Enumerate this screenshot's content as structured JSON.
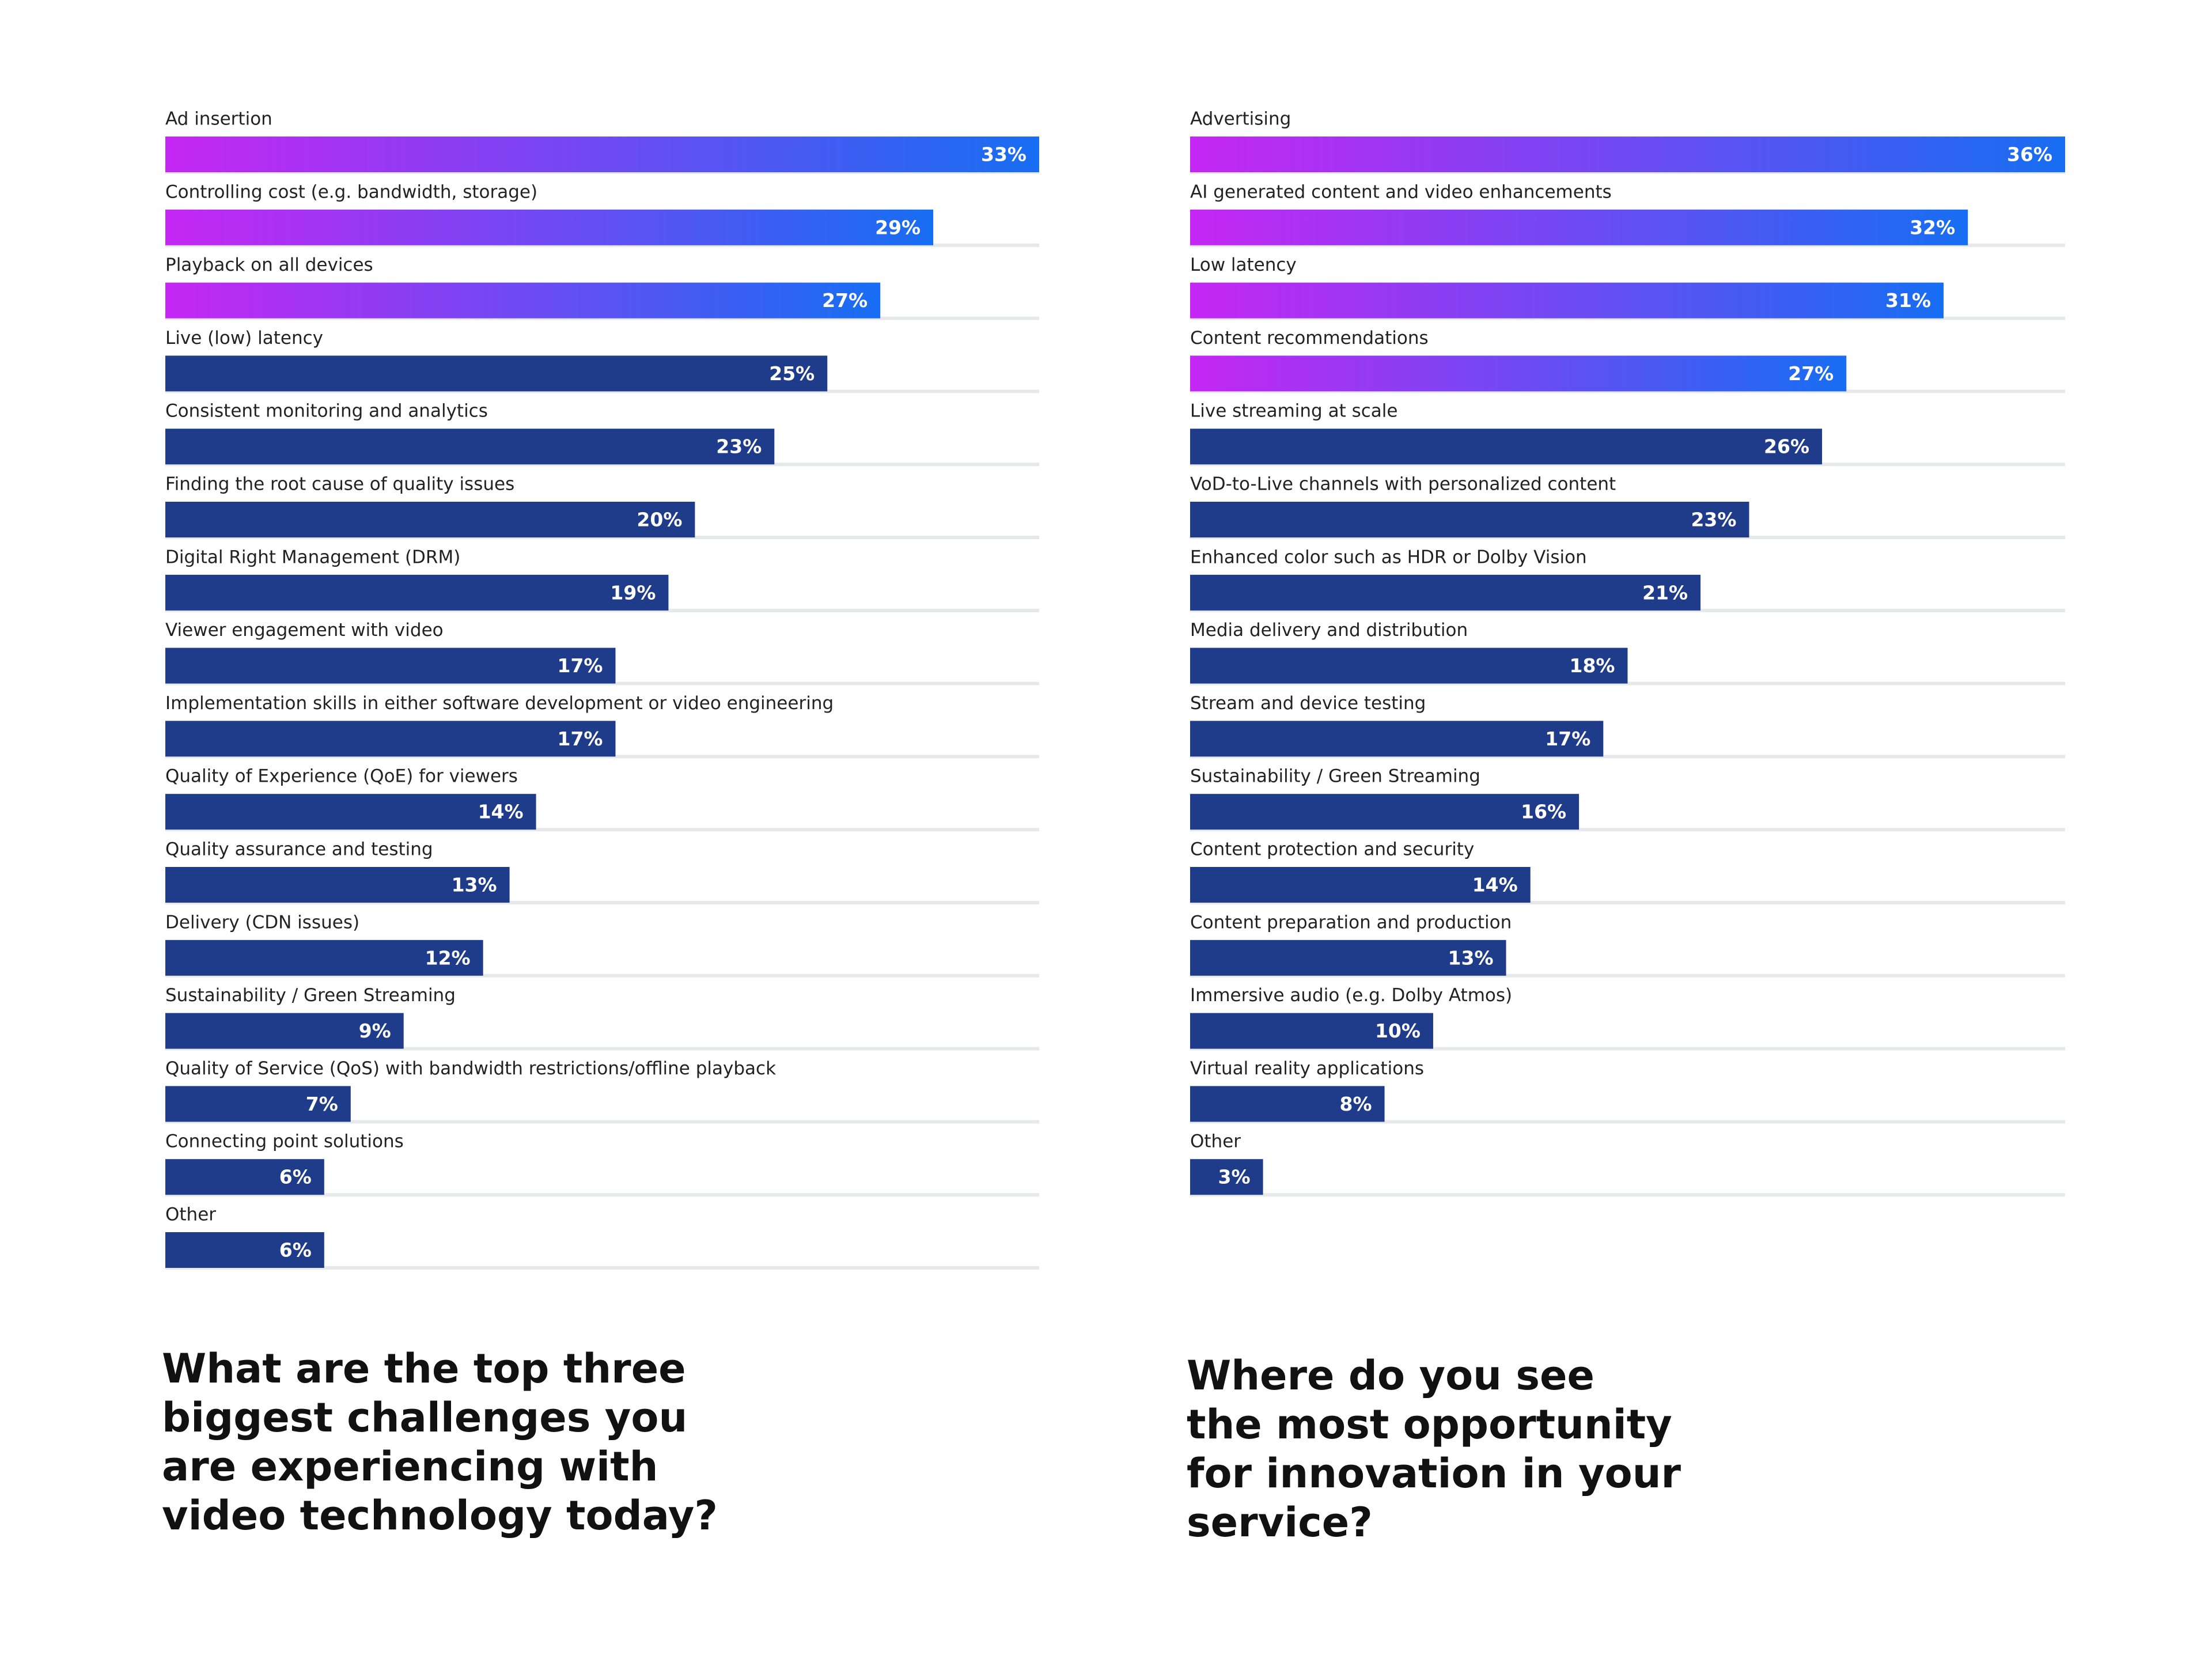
{
  "chart_data": [
    {
      "type": "bar",
      "title": [
        "What are the top three",
        "biggest challenges you",
        "are experiencing with",
        "video technology today?"
      ],
      "categories": [
        "Ad insertion",
        "Controlling cost (e.g. bandwidth, storage)",
        "Playback on all devices",
        "Live (low) latency",
        "Consistent monitoring and analytics",
        "Finding the root cause of quality issues",
        "Digital Right Management (DRM)",
        "Viewer engagement with video",
        "Implementation skills in either software development or video engineering",
        "Quality of Experience (QoE) for viewers",
        "Quality assurance and testing",
        "Delivery (CDN issues)",
        "Sustainability / Green Streaming",
        "Quality of Service (QoS) with bandwidth restrictions/offline playback",
        "Connecting point solutions",
        "Other"
      ],
      "values": [
        33,
        29,
        27,
        25,
        23,
        20,
        19,
        17,
        17,
        14,
        13,
        12,
        9,
        7,
        6,
        6
      ],
      "value_labels": [
        "33%",
        "29%",
        "27%",
        "25%",
        "23%",
        "20%",
        "19%",
        "17%",
        "17%",
        "14%",
        "13%",
        "12%",
        "9%",
        "7%",
        "6%",
        "6%"
      ],
      "colors": [
        [
          "#c526f3",
          "#176ef2"
        ],
        [
          "#c526f3",
          "#176ef2"
        ],
        [
          "#c526f3",
          "#176ef2"
        ],
        "#1f3c8a",
        "#1f3c8a",
        "#1f3c8a",
        "#1f3c8a",
        "#1f3c8a",
        "#1f3c8a",
        "#1f3c8a",
        "#1f3c8a",
        "#1f3c8a",
        "#1f3c8a",
        "#1f3c8a",
        "#1f3c8a",
        "#1f3c8a"
      ],
      "xlim": [
        0,
        33
      ]
    },
    {
      "type": "bar",
      "title": [
        "Where do you see",
        "the most opportunity",
        "for innovation in your",
        "service?"
      ],
      "categories": [
        "Advertising",
        "AI generated content and video enhancements",
        "Low latency",
        "Content recommendations",
        "Live streaming at scale",
        "VoD-to-Live channels with personalized content",
        "Enhanced color such as HDR or Dolby Vision",
        "Media delivery and distribution",
        "Stream and device testing",
        "Sustainability / Green Streaming",
        "Content protection and security",
        "Content preparation and production",
        "Immersive audio (e.g. Dolby Atmos)",
        "Virtual reality applications",
        "Other"
      ],
      "values": [
        36,
        32,
        31,
        27,
        26,
        23,
        21,
        18,
        17,
        16,
        14,
        13,
        10,
        8,
        3
      ],
      "value_labels": [
        "36%",
        "32%",
        "31%",
        "27%",
        "26%",
        "23%",
        "21%",
        "18%",
        "17%",
        "16%",
        "14%",
        "13%",
        "10%",
        "8%",
        "3%"
      ],
      "colors": [
        [
          "#c526f3",
          "#176ef2"
        ],
        [
          "#c526f3",
          "#176ef2"
        ],
        [
          "#c526f3",
          "#176ef2"
        ],
        [
          "#c526f3",
          "#176ef2"
        ],
        "#1f3c8a",
        "#1f3c8a",
        "#1f3c8a",
        "#1f3c8a",
        "#1f3c8a",
        "#1f3c8a",
        "#1f3c8a",
        "#1f3c8a",
        "#1f3c8a",
        "#1f3c8a",
        "#1f3c8a"
      ],
      "xlim": [
        0,
        36
      ]
    }
  ]
}
